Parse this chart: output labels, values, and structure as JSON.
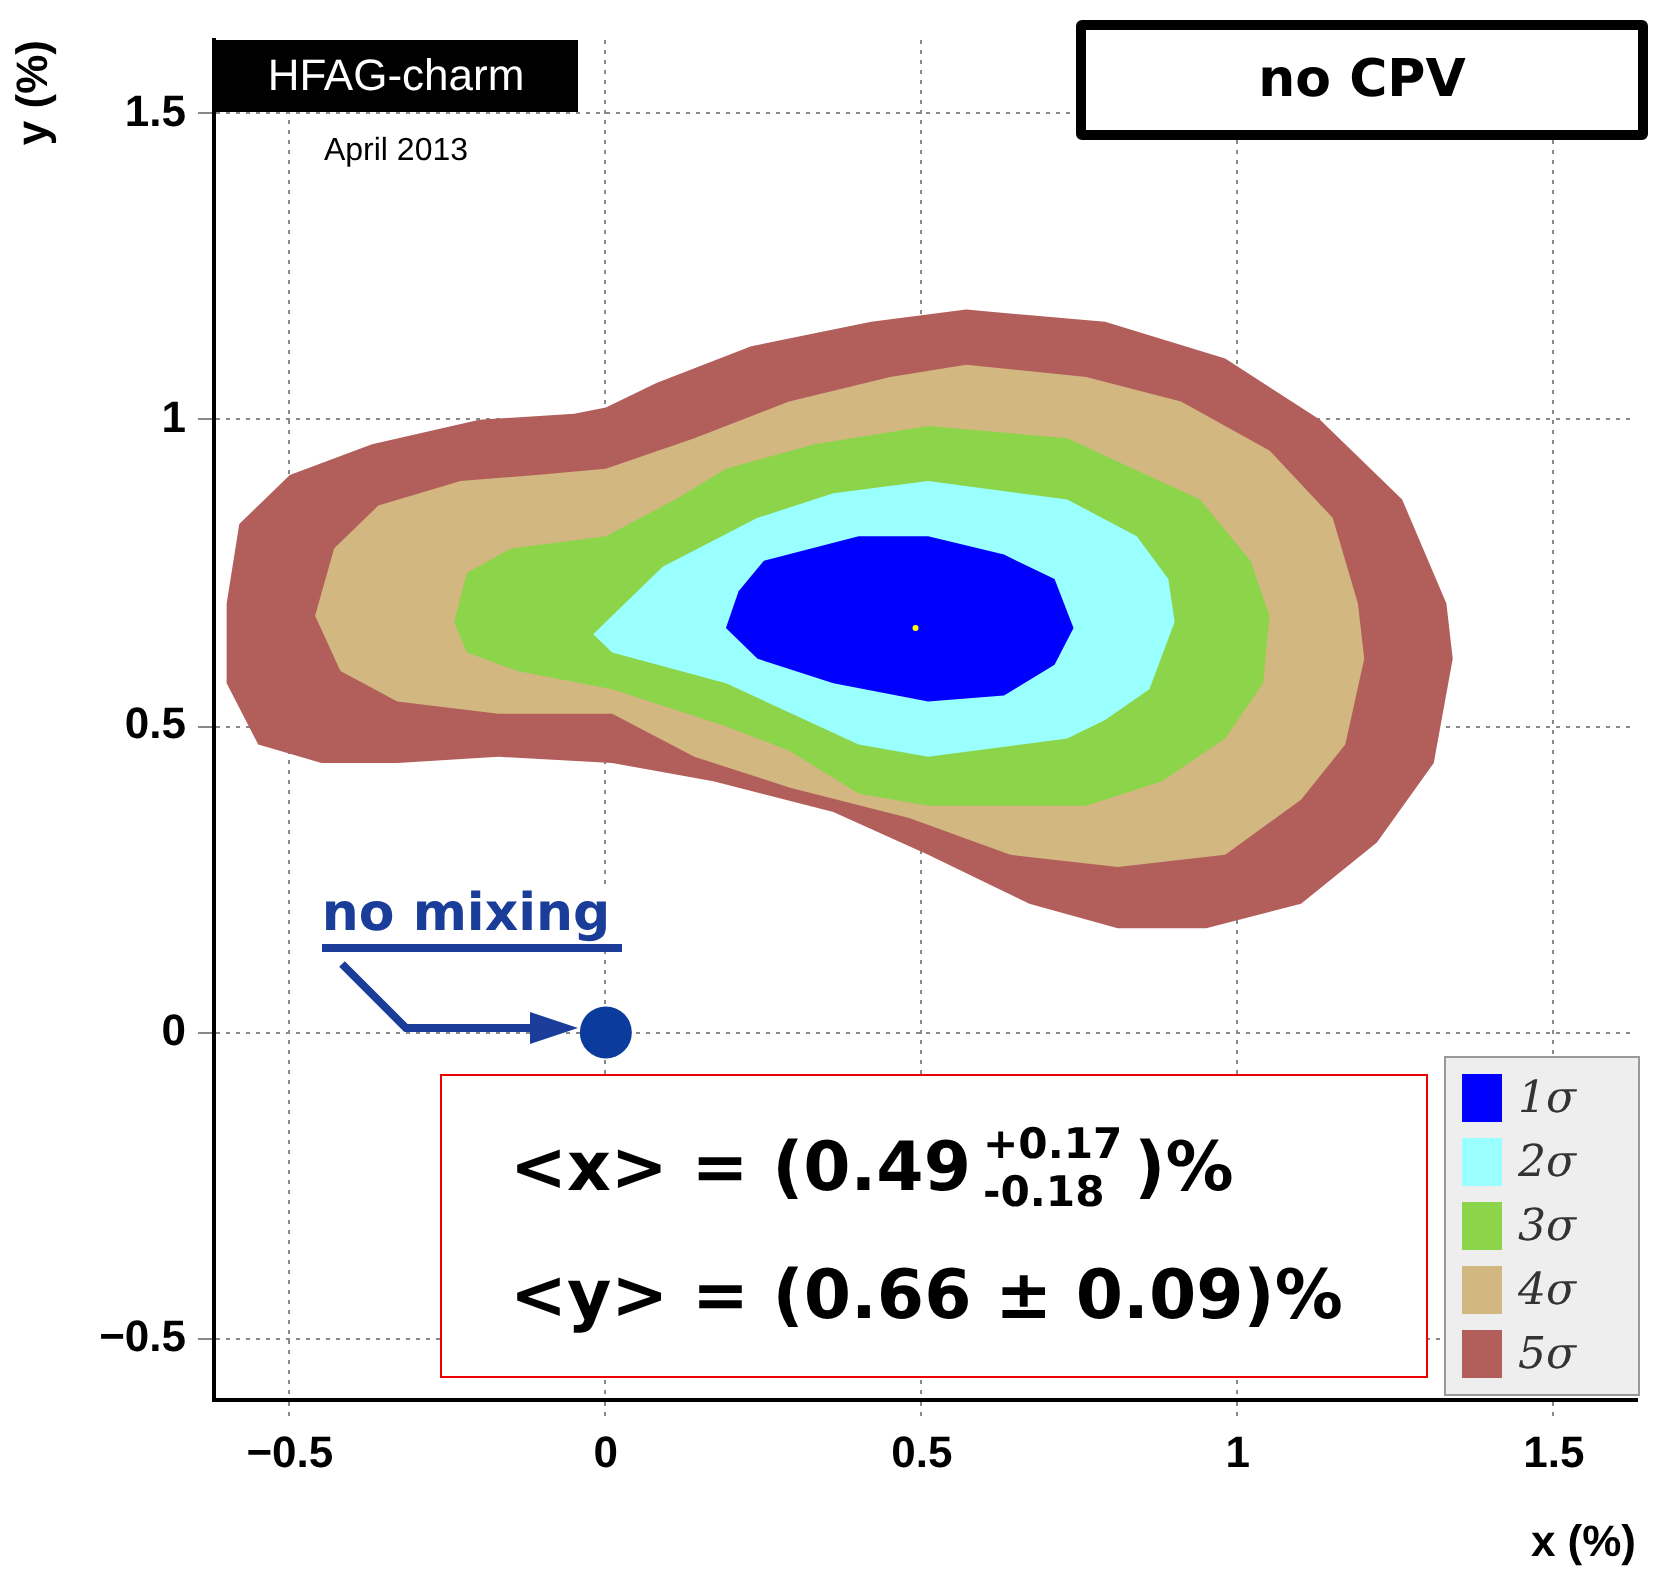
{
  "chart_data": {
    "type": "area",
    "xlabel": "x (%)",
    "ylabel": "y (%)",
    "xlim": [
      -0.62,
      1.63
    ],
    "ylim": [
      -0.6,
      1.62
    ],
    "xticks": [
      {
        "value": -0.5,
        "label": "−0.5"
      },
      0,
      0.5,
      1,
      1.5
    ],
    "yticks": [
      {
        "value": -0.5,
        "label": "−0.5"
      },
      0,
      0.5,
      1,
      1.5
    ],
    "grid": true,
    "legend": "bottom right",
    "series": [
      {
        "name": "1σ",
        "color": "#0000ff",
        "x": [
          0.19,
          0.21,
          0.25,
          0.4,
          0.51,
          0.63,
          0.71,
          0.74,
          0.71,
          0.63,
          0.51,
          0.36,
          0.24
        ],
        "values": [
          0.66,
          0.72,
          0.77,
          0.81,
          0.81,
          0.78,
          0.74,
          0.66,
          0.6,
          0.55,
          0.54,
          0.57,
          0.61
        ]
      },
      {
        "name": "2σ",
        "color": "#99ffff",
        "x": [
          -0.02,
          0.03,
          0.09,
          0.24,
          0.36,
          0.51,
          0.73,
          0.84,
          0.89,
          0.9,
          0.86,
          0.79,
          0.73,
          0.51,
          0.4,
          0.19,
          0.01
        ],
        "values": [
          0.65,
          0.7,
          0.76,
          0.84,
          0.88,
          0.9,
          0.87,
          0.81,
          0.74,
          0.67,
          0.56,
          0.51,
          0.48,
          0.45,
          0.47,
          0.57,
          0.62
        ]
      },
      {
        "name": "3σ",
        "color": "#8cd44a",
        "x": [
          -0.24,
          -0.22,
          -0.15,
          0,
          0.11,
          0.19,
          0.33,
          0.51,
          0.73,
          0.94,
          1.02,
          1.05,
          1.04,
          0.98,
          0.88,
          0.76,
          0.51,
          0.4,
          0.29,
          0.19,
          0.01,
          -0.14,
          -0.22
        ],
        "values": [
          0.67,
          0.75,
          0.79,
          0.81,
          0.87,
          0.92,
          0.96,
          0.99,
          0.97,
          0.87,
          0.77,
          0.68,
          0.57,
          0.48,
          0.41,
          0.37,
          0.37,
          0.39,
          0.46,
          0.5,
          0.56,
          0.59,
          0.62
        ]
      },
      {
        "name": "4σ",
        "color": "#d2b780",
        "x": [
          -0.46,
          -0.43,
          -0.36,
          -0.23,
          -0.11,
          0,
          0.14,
          0.29,
          0.45,
          0.57,
          0.76,
          0.91,
          1.05,
          1.15,
          1.19,
          1.2,
          1.17,
          1.1,
          0.98,
          0.81,
          0.64,
          0.48,
          0.29,
          0.14,
          0.01,
          -0.17,
          -0.33,
          -0.42
        ],
        "values": [
          0.68,
          0.79,
          0.86,
          0.9,
          0.91,
          0.92,
          0.97,
          1.03,
          1.07,
          1.09,
          1.07,
          1.03,
          0.95,
          0.84,
          0.7,
          0.61,
          0.47,
          0.38,
          0.29,
          0.27,
          0.29,
          0.35,
          0.4,
          0.45,
          0.52,
          0.52,
          0.54,
          0.59
        ]
      },
      {
        "name": "5σ",
        "color": "#b25f5c",
        "x": [
          -0.6,
          -0.58,
          -0.5,
          -0.37,
          -0.2,
          -0.05,
          0,
          0.08,
          0.23,
          0.42,
          0.57,
          0.79,
          0.98,
          1.13,
          1.26,
          1.33,
          1.34,
          1.31,
          1.22,
          1.1,
          0.95,
          0.81,
          0.67,
          0.51,
          0.36,
          0.17,
          0.01,
          -0.17,
          -0.33,
          -0.45,
          -0.55,
          -0.6
        ],
        "values": [
          0.7,
          0.83,
          0.91,
          0.96,
          1.0,
          1.01,
          1.02,
          1.06,
          1.12,
          1.16,
          1.18,
          1.16,
          1.1,
          1.0,
          0.87,
          0.7,
          0.61,
          0.44,
          0.31,
          0.21,
          0.17,
          0.17,
          0.21,
          0.29,
          0.36,
          0.41,
          0.44,
          0.45,
          0.44,
          0.44,
          0.47,
          0.57
        ]
      },
      {
        "type": "scatter",
        "marker": "circle",
        "color": "#ffff00",
        "x": [
          0.49
        ],
        "values": [
          0.66
        ]
      },
      {
        "type": "scatter",
        "marker": "circle",
        "color": "#0b3b9c",
        "x": [
          0
        ],
        "values": [
          0
        ]
      }
    ],
    "annotations": [
      "HFAG-charm",
      "April 2013",
      "no CPV",
      {
        "text": "no mixing",
        "x": 0,
        "y": 0
      },
      "<x> = (0.49 $^{+0.17}$$_{-0.18}$)%",
      "<y> = (0.66 ± 0.09)%"
    ]
  }
}
